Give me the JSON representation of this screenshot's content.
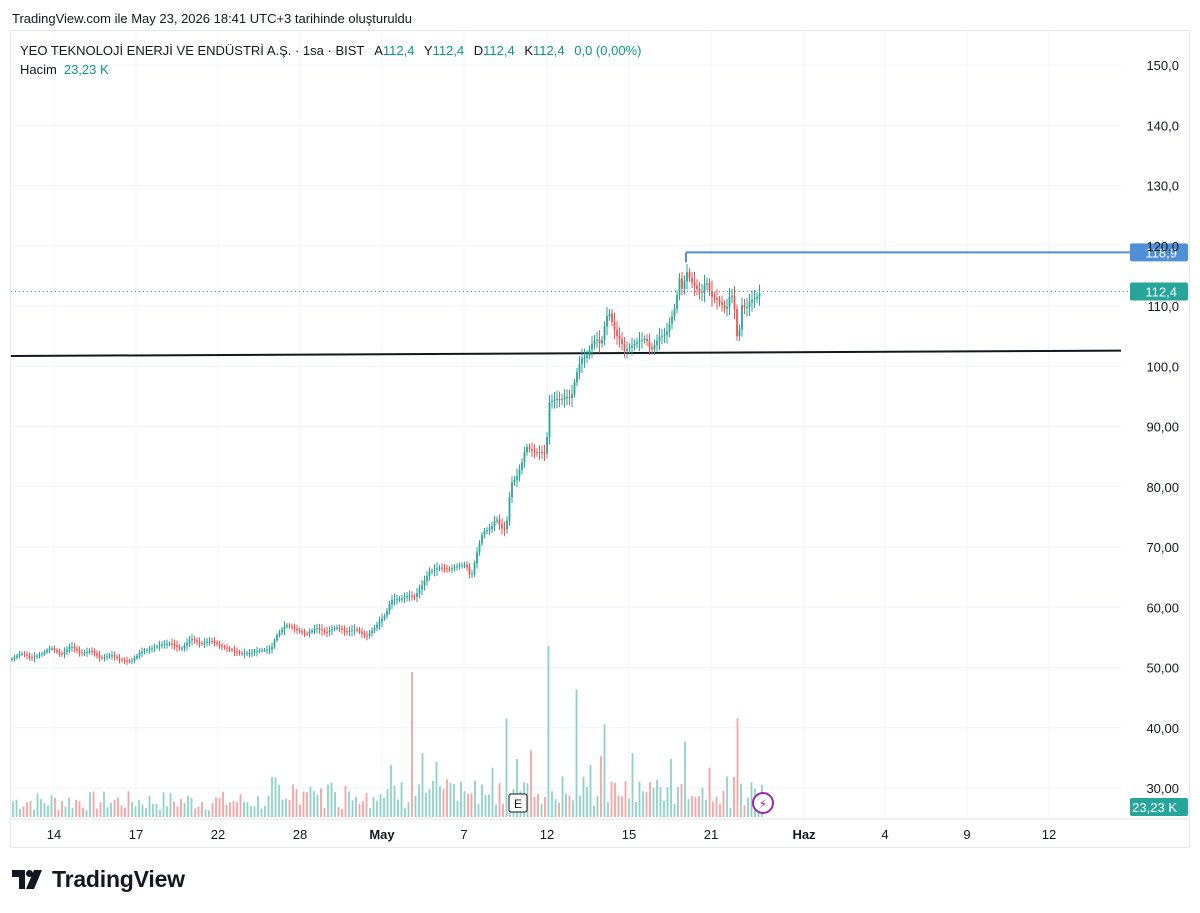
{
  "caption": "TradingView.com ile May 23, 2026 18:41 UTC+3 tarihinde oluşturuldu",
  "legend": {
    "symbol": "YEO TEKNOLOJİ ENERJİ VE ENDÜSTRİ A.Ş. · 1sa · BIST",
    "open_label": "A",
    "open_value": "112,4",
    "high_label": "Y",
    "high_value": "112,4",
    "low_label": "D",
    "low_value": "112,4",
    "close_label": "K",
    "close_value": "112,4",
    "change": "0,0 (0,00%)",
    "volume_label": "Hacim",
    "volume_value": "23,23 K"
  },
  "footer": {
    "brand": "TradingView"
  },
  "colors": {
    "up": "#26a69a",
    "down": "#ef5350",
    "vol_up": "#8fd1c6",
    "vol_down": "#f4a4a2",
    "accent_blue": "#2962ff",
    "line_blue": "#4f8fd6",
    "grid": "#f0f3fa",
    "brand_dark": "#131722"
  },
  "chart_data": {
    "type": "candlestick",
    "y_ticks": [
      "150,0",
      "140,0",
      "130,0",
      "120,0",
      "110,0",
      "100,0",
      "90,00",
      "80,00",
      "70,00",
      "60,00",
      "50,00",
      "40,00",
      "30,00"
    ],
    "y_tick_values": [
      150,
      140,
      130,
      120,
      110,
      100,
      90,
      80,
      70,
      60,
      50,
      40,
      30
    ],
    "ylim": [
      27,
      156
    ],
    "x_ticks": [
      "14",
      "17",
      "22",
      "28",
      "May",
      "7",
      "12",
      "15",
      "21",
      "Haz",
      "4",
      "9",
      "12"
    ],
    "x_ticks_bold": [
      "May",
      "Haz"
    ],
    "price_series": [
      [
        0,
        51.3
      ],
      [
        10,
        52.4
      ],
      [
        20,
        51.6
      ],
      [
        30,
        52.2
      ],
      [
        40,
        53.3
      ],
      [
        50,
        52.1
      ],
      [
        60,
        53.6
      ],
      [
        70,
        52.3
      ],
      [
        80,
        52.8
      ],
      [
        90,
        51.5
      ],
      [
        100,
        52.1
      ],
      [
        110,
        51.2
      ],
      [
        120,
        51.0
      ],
      [
        130,
        52.6
      ],
      [
        140,
        53.1
      ],
      [
        150,
        53.8
      ],
      [
        160,
        54.0
      ],
      [
        170,
        53.0
      ],
      [
        180,
        54.8
      ],
      [
        190,
        53.9
      ],
      [
        200,
        54.5
      ],
      [
        210,
        53.5
      ],
      [
        220,
        52.9
      ],
      [
        230,
        52.3
      ],
      [
        240,
        52.4
      ],
      [
        250,
        52.9
      ],
      [
        260,
        53.0
      ],
      [
        265,
        55.2
      ],
      [
        270,
        56.1
      ],
      [
        275,
        57.1
      ],
      [
        285,
        56.3
      ],
      [
        295,
        55.5
      ],
      [
        305,
        56.6
      ],
      [
        315,
        55.8
      ],
      [
        325,
        56.7
      ],
      [
        335,
        55.9
      ],
      [
        345,
        56.4
      ],
      [
        355,
        55.1
      ],
      [
        362,
        56.3
      ],
      [
        368,
        57.5
      ],
      [
        375,
        58.9
      ],
      [
        380,
        61.2
      ],
      [
        390,
        61.4
      ],
      [
        398,
        62.0
      ],
      [
        403,
        61.6
      ],
      [
        410,
        63.3
      ],
      [
        418,
        65.8
      ],
      [
        428,
        66.6
      ],
      [
        438,
        66.3
      ],
      [
        448,
        66.9
      ],
      [
        455,
        67.1
      ],
      [
        460,
        64.8
      ],
      [
        467,
        69.8
      ],
      [
        472,
        72.5
      ],
      [
        480,
        73.1
      ],
      [
        485,
        74.9
      ],
      [
        490,
        73.2
      ],
      [
        495,
        72.8
      ],
      [
        500,
        80.6
      ],
      [
        505,
        81.4
      ],
      [
        510,
        83.4
      ],
      [
        515,
        86.7
      ],
      [
        520,
        86.1
      ],
      [
        525,
        85.6
      ],
      [
        530,
        85.8
      ],
      [
        535,
        85.4
      ],
      [
        538,
        94.0
      ],
      [
        545,
        94.6
      ],
      [
        550,
        94.4
      ],
      [
        555,
        95.0
      ],
      [
        560,
        94.6
      ],
      [
        565,
        98.5
      ],
      [
        570,
        101.3
      ],
      [
        575,
        101.4
      ],
      [
        580,
        103.4
      ],
      [
        585,
        104.7
      ],
      [
        590,
        103.4
      ],
      [
        595,
        108.0
      ],
      [
        598,
        109.0
      ],
      [
        605,
        105.2
      ],
      [
        610,
        104.3
      ],
      [
        613,
        102.5
      ],
      [
        620,
        103.3
      ],
      [
        628,
        104.2
      ],
      [
        635,
        104.6
      ],
      [
        640,
        102.5
      ],
      [
        648,
        104.8
      ],
      [
        655,
        105.3
      ],
      [
        660,
        107.8
      ],
      [
        665,
        110.3
      ],
      [
        668,
        114.9
      ],
      [
        672,
        112.2
      ],
      [
        675,
        116.0
      ],
      [
        680,
        114.1
      ],
      [
        685,
        113.1
      ],
      [
        690,
        111.8
      ],
      [
        695,
        114.3
      ],
      [
        700,
        111.7
      ],
      [
        705,
        111.1
      ],
      [
        710,
        110.4
      ],
      [
        715,
        109.2
      ],
      [
        720,
        112.6
      ],
      [
        725,
        108.1
      ],
      [
        727,
        101.9
      ],
      [
        730,
        110.3
      ],
      [
        735,
        109.5
      ],
      [
        740,
        111.0
      ],
      [
        745,
        111.3
      ],
      [
        750,
        112.4
      ]
    ],
    "ref_line_max": 118.9,
    "ref_line_start_x": 675,
    "last_price": 112.4,
    "price_labels": [
      "118,9",
      "112,4"
    ],
    "trendline": {
      "from": [
        0,
        101.7
      ],
      "to": [
        1110,
        102.6
      ]
    },
    "volume_label": "23,23 K",
    "volume_spikes": [
      [
        380,
        18
      ],
      [
        390,
        12
      ],
      [
        402,
        50
      ],
      [
        412,
        22
      ],
      [
        425,
        19
      ],
      [
        458,
        8
      ],
      [
        480,
        17
      ],
      [
        496,
        34
      ],
      [
        505,
        20
      ],
      [
        512,
        12
      ],
      [
        520,
        23
      ],
      [
        538,
        59
      ],
      [
        552,
        14
      ],
      [
        566,
        44
      ],
      [
        580,
        18
      ],
      [
        590,
        21
      ],
      [
        595,
        32
      ],
      [
        620,
        22
      ],
      [
        640,
        12
      ],
      [
        660,
        20
      ],
      [
        675,
        26
      ],
      [
        700,
        17
      ],
      [
        726,
        34
      ],
      [
        740,
        12
      ]
    ],
    "markers": {
      "earnings": "E",
      "dividend": "⚡"
    }
  }
}
